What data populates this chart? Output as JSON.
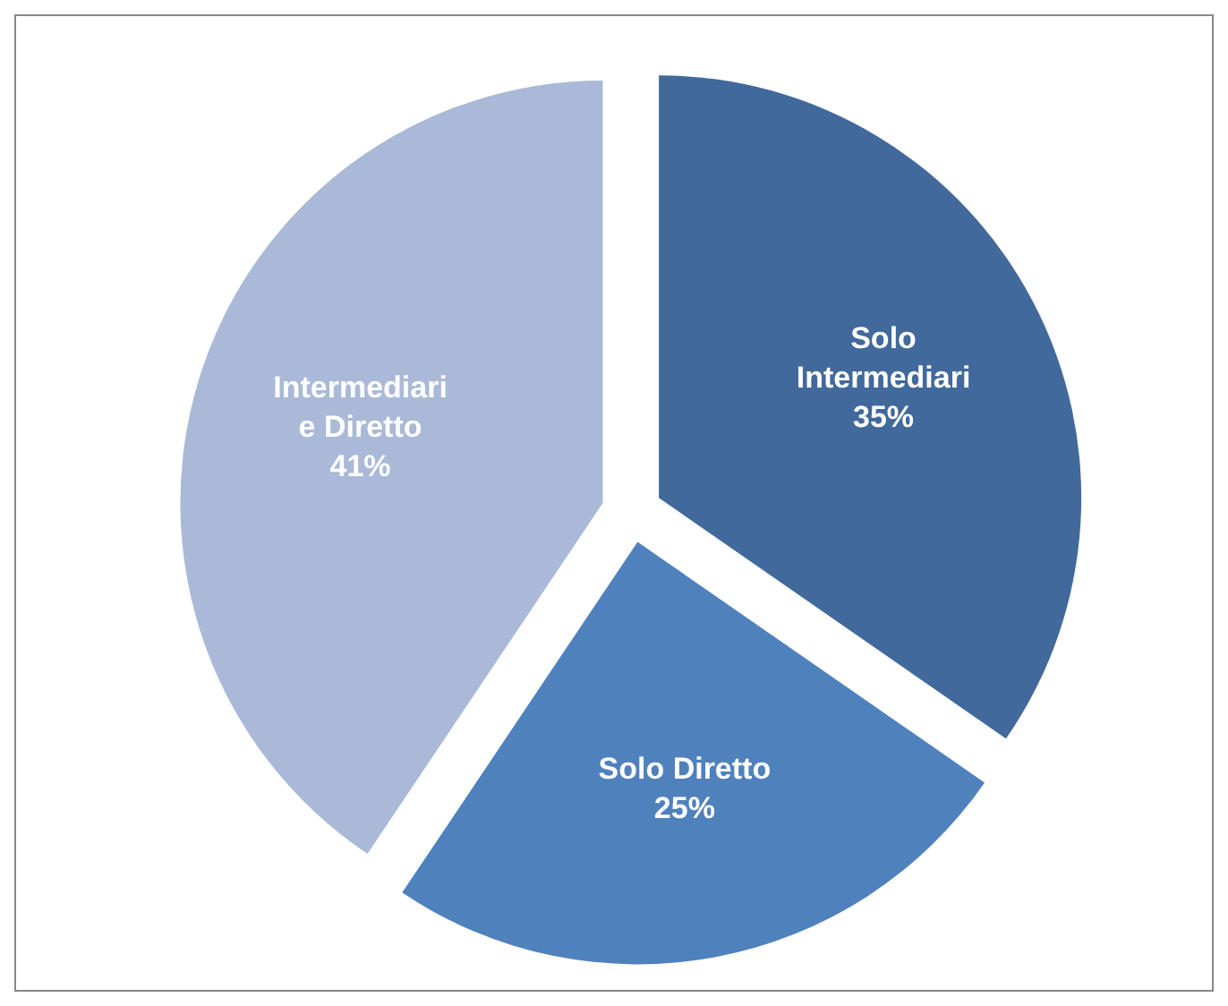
{
  "chart_data": {
    "type": "pie",
    "categories": [
      "Solo Intermediari",
      "Solo Diretto",
      "Intermediari e Diretto"
    ],
    "values": [
      35,
      25,
      41
    ],
    "value_labels": [
      "35%",
      "25%",
      "41%"
    ],
    "colors": [
      "#41699b",
      "#4f81bd",
      "#a9b9d7"
    ]
  }
}
